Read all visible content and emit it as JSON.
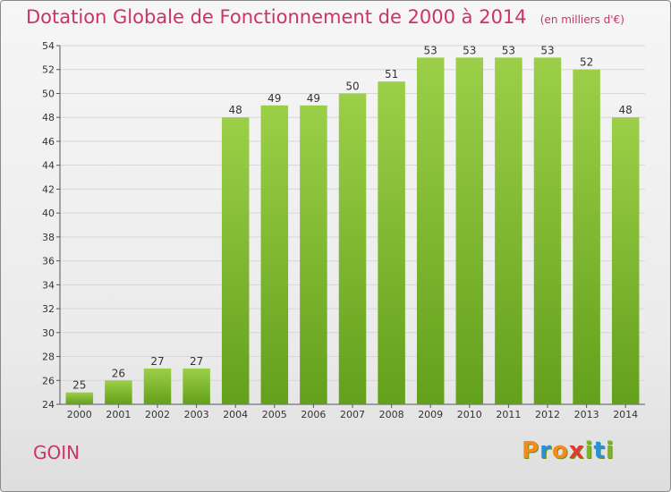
{
  "header": {
    "title": "Dotation Globale de Fonctionnement de 2000 à 2014",
    "unit": "(en milliers d'€)"
  },
  "footer": {
    "commune": "GOIN",
    "logo_letters": [
      "P",
      "r",
      "o",
      "x",
      "i",
      "t",
      "i"
    ],
    "logo_colors": [
      "#f28c1e",
      "#2a8fd8",
      "#f28c1e",
      "#e23b2e",
      "#7ab52a",
      "#2a8fd8",
      "#7ab52a"
    ]
  },
  "colors": {
    "bar_light": "#9ccf48",
    "bar_dark": "#63a01c",
    "axis": "#555555",
    "grid": "#d6d6d6"
  },
  "chart_data": {
    "type": "bar",
    "title": "Dotation Globale de Fonctionnement de 2000 à 2014",
    "subtitle": "(en milliers d'€)",
    "xlabel": "",
    "ylabel": "",
    "categories": [
      "2000",
      "2001",
      "2002",
      "2003",
      "2004",
      "2005",
      "2006",
      "2007",
      "2008",
      "2009",
      "2010",
      "2011",
      "2012",
      "2013",
      "2014"
    ],
    "values": [
      25,
      26,
      27,
      27,
      48,
      49,
      49,
      50,
      51,
      53,
      53,
      53,
      53,
      52,
      48
    ],
    "ylim": [
      24,
      54
    ],
    "yticks": [
      24,
      26,
      28,
      30,
      32,
      34,
      36,
      38,
      40,
      42,
      44,
      46,
      48,
      50,
      52,
      54
    ],
    "grid": true,
    "legend": "none"
  }
}
